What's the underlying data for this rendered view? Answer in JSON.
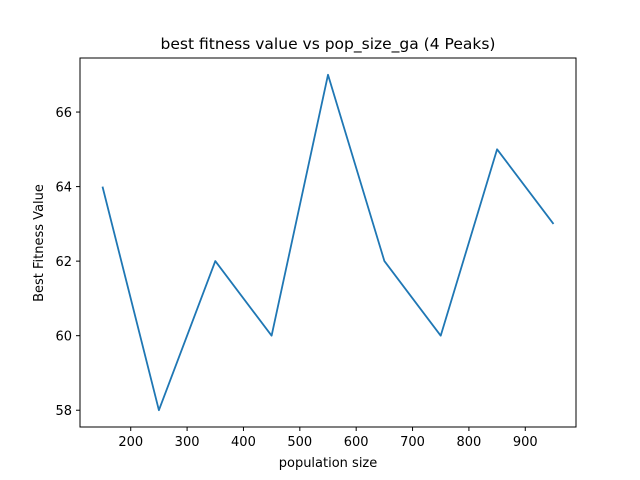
{
  "chart_data": {
    "type": "line",
    "title": "best fitness value vs pop_size_ga (4 Peaks)",
    "xlabel": "population size",
    "ylabel": "Best Fitness Value",
    "xlim": [
      110,
      990
    ],
    "ylim": [
      57.55,
      67.45
    ],
    "xticks": [
      200,
      300,
      400,
      500,
      600,
      700,
      800,
      900
    ],
    "yticks": [
      58,
      60,
      62,
      64,
      66
    ],
    "grid": false,
    "legend": "none",
    "series": [
      {
        "color": "#1f77b4",
        "x": [
          150,
          250,
          350,
          450,
          550,
          650,
          750,
          850,
          950
        ],
        "y": [
          64,
          58,
          62,
          60,
          67,
          62,
          60,
          65,
          63
        ]
      }
    ]
  }
}
